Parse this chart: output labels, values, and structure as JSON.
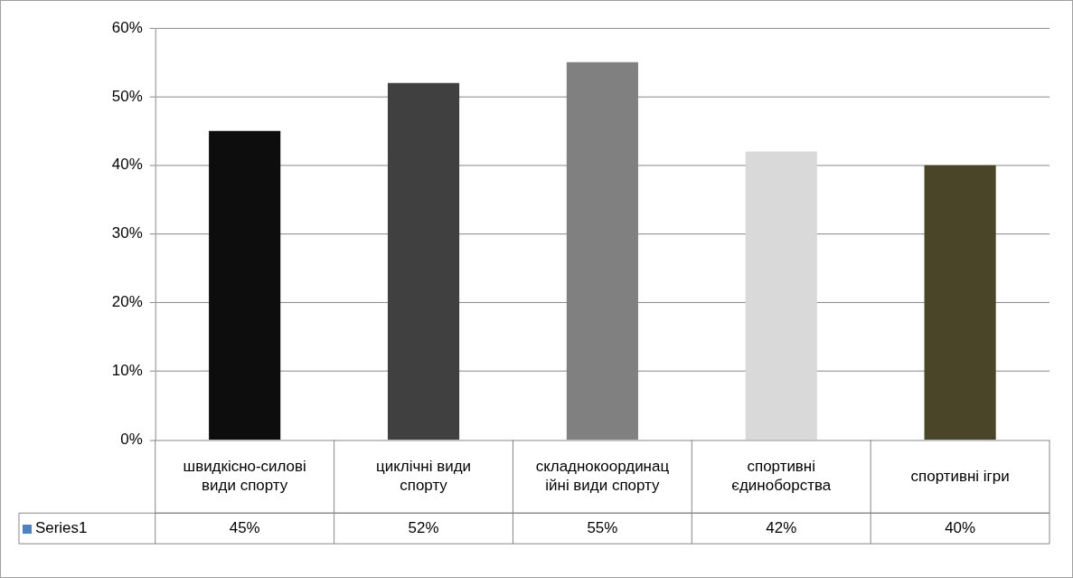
{
  "chart_data": {
    "type": "bar",
    "categories": [
      "швидкісно-силові види спорту",
      "циклічні види спорту",
      "складнокоординаційні види спорту",
      "спортивні єдиноборства",
      "спортивні ігри"
    ],
    "series": [
      {
        "name": "Series1",
        "color": "#4f81bd",
        "colors": [
          "#0d0d0d",
          "#404040",
          "#808080",
          "#d9d9d9",
          "#4a4429"
        ],
        "values": [
          45,
          52,
          55,
          42,
          40
        ],
        "value_labels": [
          "45%",
          "52%",
          "55%",
          "42%",
          "40%"
        ]
      }
    ],
    "ylim": [
      0,
      60
    ],
    "yticks": [
      {
        "value": 0,
        "label": "0%"
      },
      {
        "value": 10,
        "label": "10%"
      },
      {
        "value": 20,
        "label": "20%"
      },
      {
        "value": 30,
        "label": "30%"
      },
      {
        "value": 40,
        "label": "40%"
      },
      {
        "value": 50,
        "label": "50%"
      },
      {
        "value": 60,
        "label": "60%"
      }
    ],
    "grid": "y",
    "legend": "bottom"
  }
}
